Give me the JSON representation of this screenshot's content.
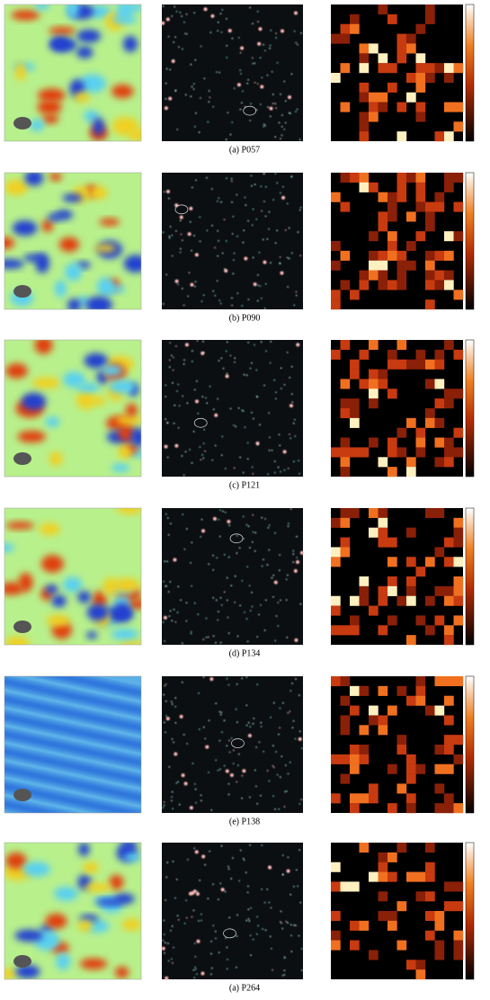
{
  "figure": {
    "panels": [
      {
        "caption": "(a) P057"
      },
      {
        "caption": "(b) P090"
      },
      {
        "caption": "(c) P121"
      },
      {
        "caption": "(d) P134"
      },
      {
        "caption": "(e) P138"
      },
      {
        "caption": "(a) P264"
      }
    ]
  }
}
